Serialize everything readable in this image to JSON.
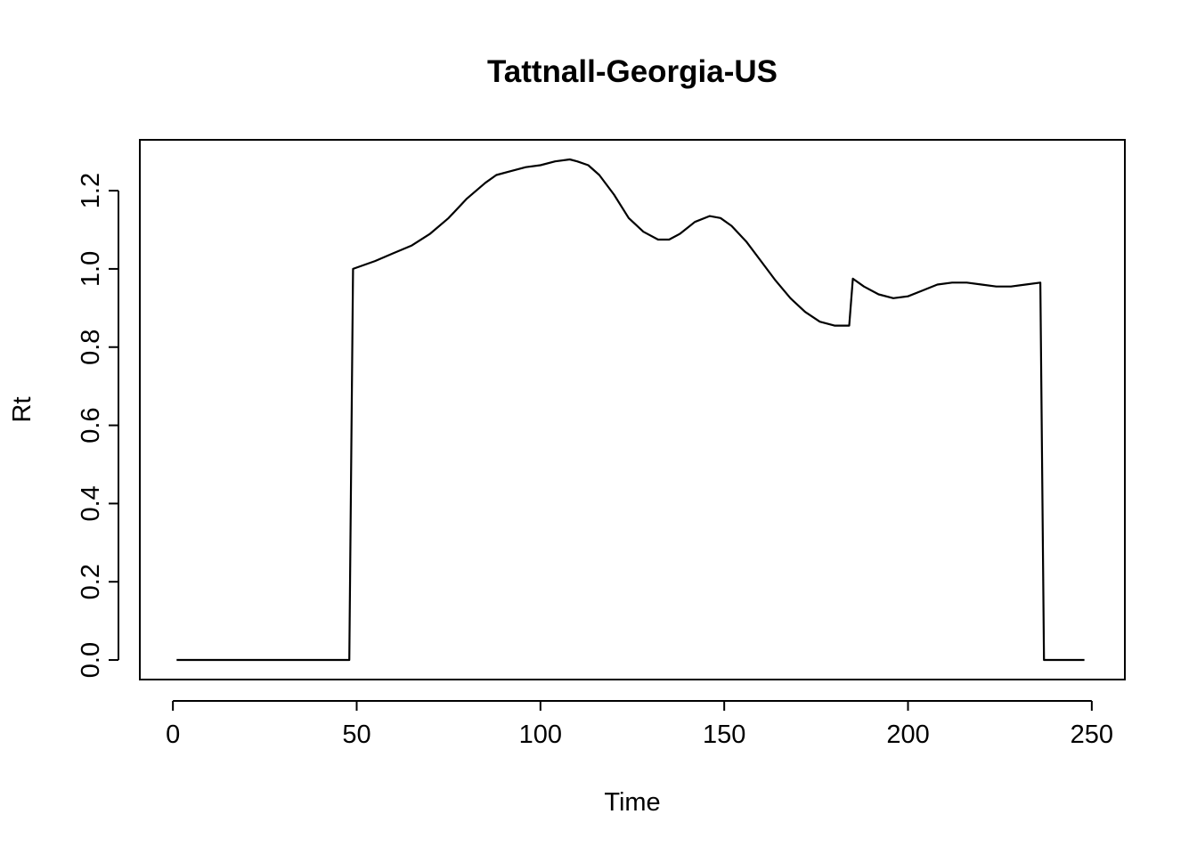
{
  "chart_data": {
    "type": "line",
    "title": "Tattnall-Georgia-US",
    "xlabel": "Time",
    "ylabel": "Rt",
    "xlim": [
      -9,
      259
    ],
    "ylim": [
      -0.05,
      1.33
    ],
    "x_ticks": [
      0,
      50,
      100,
      150,
      200,
      250
    ],
    "y_ticks": [
      0.0,
      0.2,
      0.4,
      0.6,
      0.8,
      1.0,
      1.2
    ],
    "x_tick_labels": [
      "0",
      "50",
      "100",
      "150",
      "200",
      "250"
    ],
    "y_tick_labels": [
      "0.0",
      "0.2",
      "0.4",
      "0.6",
      "0.8",
      "1.0",
      "1.2"
    ],
    "grid": false,
    "legend": "none",
    "series": [
      {
        "color": "#000000",
        "x": [
          1,
          48,
          49,
          55,
          60,
          65,
          70,
          75,
          80,
          85,
          88,
          92,
          96,
          100,
          104,
          108,
          110,
          113,
          116,
          120,
          124,
          128,
          132,
          135,
          138,
          142,
          146,
          149,
          152,
          156,
          160,
          164,
          168,
          172,
          176,
          180,
          184,
          185,
          188,
          192,
          196,
          200,
          204,
          208,
          212,
          216,
          220,
          224,
          228,
          232,
          236,
          237,
          248
        ],
        "y": [
          0,
          0,
          1.0,
          1.02,
          1.04,
          1.06,
          1.09,
          1.13,
          1.18,
          1.22,
          1.24,
          1.25,
          1.26,
          1.265,
          1.275,
          1.28,
          1.275,
          1.265,
          1.24,
          1.19,
          1.13,
          1.095,
          1.075,
          1.075,
          1.09,
          1.12,
          1.135,
          1.13,
          1.11,
          1.07,
          1.02,
          0.97,
          0.925,
          0.89,
          0.865,
          0.855,
          0.855,
          0.975,
          0.955,
          0.935,
          0.925,
          0.93,
          0.945,
          0.96,
          0.965,
          0.965,
          0.96,
          0.955,
          0.955,
          0.96,
          0.965,
          0.0,
          0.0
        ]
      }
    ]
  }
}
